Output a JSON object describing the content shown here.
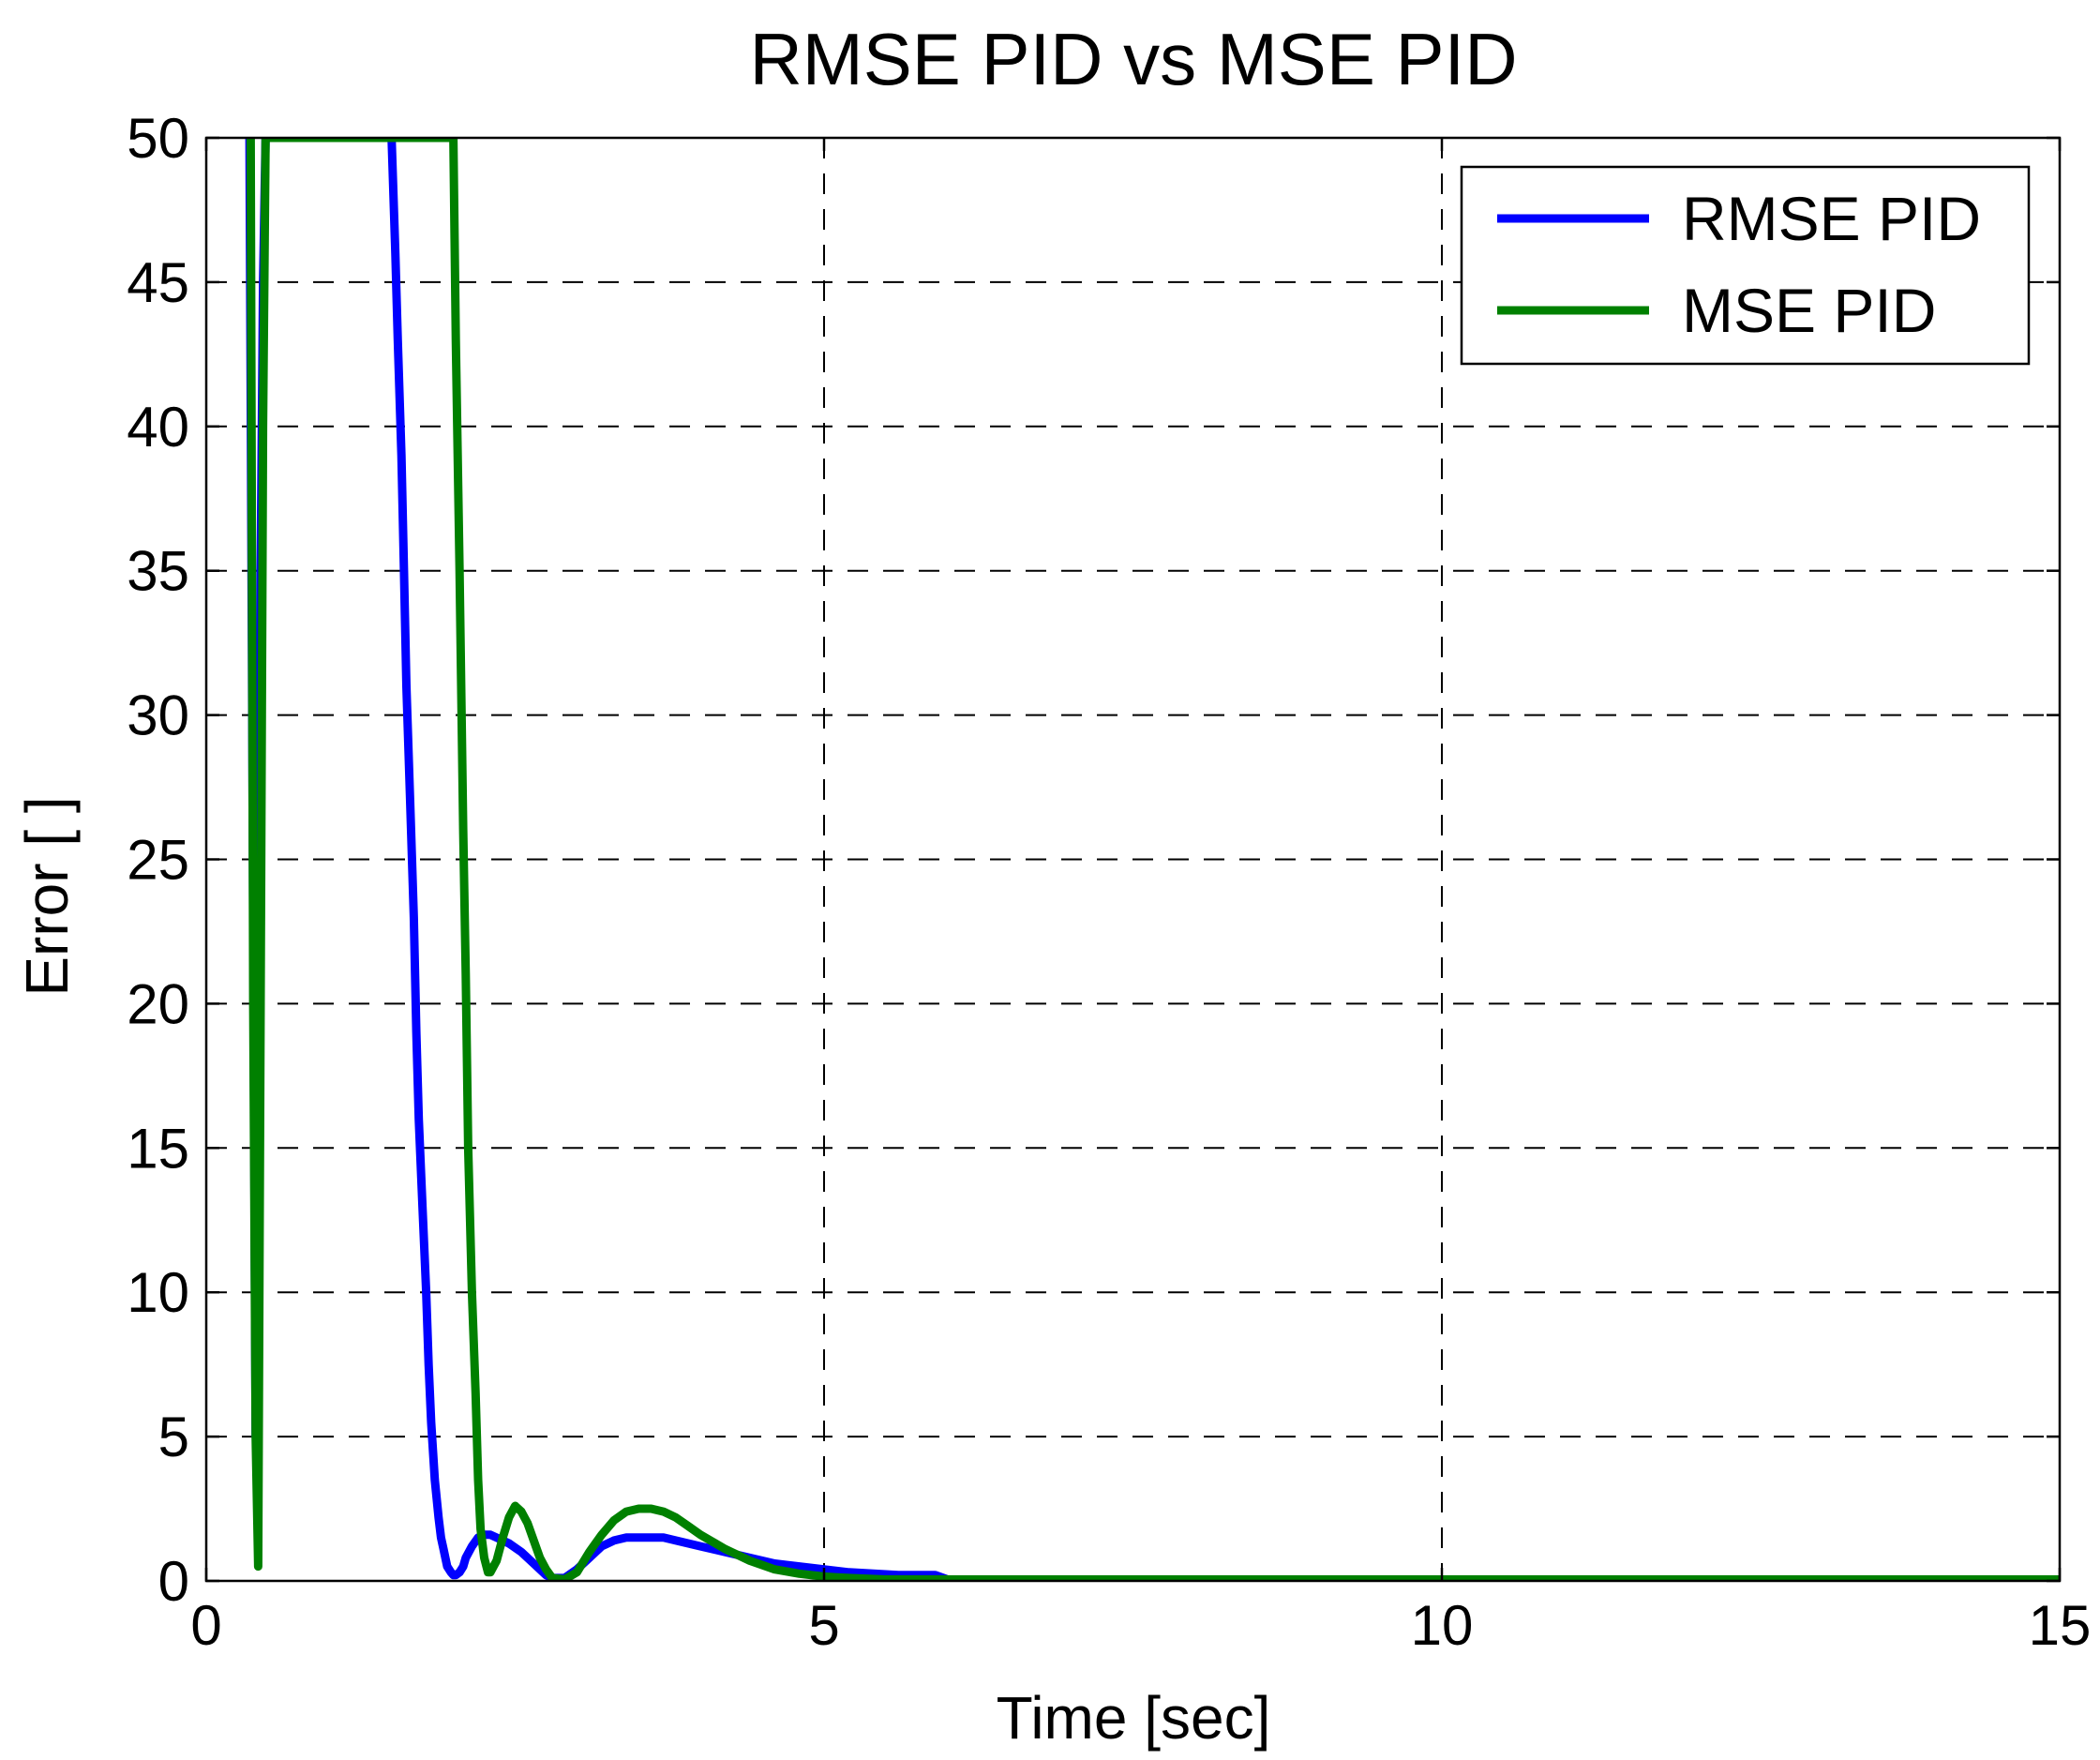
{
  "chart_data": {
    "type": "line",
    "title": "RMSE PID vs MSE PID",
    "xlabel": "Time [sec]",
    "ylabel": "Error [ ]",
    "xlim": [
      0,
      15
    ],
    "ylim": [
      0,
      50
    ],
    "xticks": [
      0,
      5,
      10,
      15
    ],
    "yticks": [
      0,
      5,
      10,
      15,
      20,
      25,
      30,
      35,
      40,
      45,
      50
    ],
    "grid": true,
    "legend_position": "top-right",
    "series": [
      {
        "name": "RMSE PID",
        "color": "#0000ff",
        "x": [
          0.35,
          0.4,
          0.42,
          0.44,
          0.46,
          0.48,
          0.5,
          1.2,
          1.5,
          1.53,
          1.55,
          1.58,
          1.6,
          1.62,
          1.65,
          1.68,
          1.7,
          1.72,
          1.75,
          1.78,
          1.8,
          1.82,
          1.85,
          1.88,
          1.9,
          1.92,
          1.95,
          1.98,
          2.0,
          2.02,
          2.05,
          2.08,
          2.1,
          2.15,
          2.2,
          2.25,
          2.3,
          2.35,
          2.45,
          2.55,
          2.65,
          2.75,
          2.8,
          2.9,
          3.0,
          3.1,
          3.2,
          3.3,
          3.4,
          3.5,
          3.6,
          3.7,
          3.8,
          3.9,
          4.0,
          4.2,
          4.4,
          4.6,
          4.8,
          5.0,
          5.2,
          5.4,
          5.6,
          5.8,
          5.9,
          6.0,
          7.0,
          8.0,
          9.0,
          10.0,
          11.0,
          12.0,
          13.0,
          14.0,
          15.0
        ],
        "y": [
          50,
          5,
          20,
          35,
          45,
          50,
          50,
          50,
          50,
          46,
          43,
          39,
          35,
          31,
          27,
          23,
          19,
          16,
          13,
          10,
          7.5,
          5.5,
          3.5,
          2.2,
          1.5,
          1.1,
          0.5,
          0.3,
          0.2,
          0.2,
          0.3,
          0.5,
          0.8,
          1.2,
          1.5,
          1.6,
          1.6,
          1.5,
          1.3,
          1.0,
          0.6,
          0.2,
          0.1,
          0.1,
          0.4,
          0.8,
          1.2,
          1.4,
          1.5,
          1.5,
          1.5,
          1.5,
          1.4,
          1.3,
          1.2,
          1.0,
          0.8,
          0.6,
          0.5,
          0.4,
          0.3,
          0.25,
          0.2,
          0.2,
          0.2,
          0.05,
          0.05,
          0.05,
          0.05,
          0.05,
          0.05,
          0.05,
          0.05,
          0.05,
          0.05
        ]
      },
      {
        "name": "MSE PID",
        "color": "#008000",
        "x": [
          0.36,
          0.38,
          0.4,
          0.42,
          0.44,
          0.46,
          0.48,
          1.0,
          2.0,
          2.02,
          2.05,
          2.08,
          2.1,
          2.12,
          2.15,
          2.18,
          2.2,
          2.22,
          2.25,
          2.28,
          2.3,
          2.35,
          2.4,
          2.45,
          2.5,
          2.55,
          2.6,
          2.65,
          2.7,
          2.75,
          2.8,
          2.9,
          3.0,
          3.1,
          3.2,
          3.3,
          3.4,
          3.5,
          3.6,
          3.7,
          3.8,
          3.9,
          4.0,
          4.2,
          4.4,
          4.6,
          4.8,
          5.0,
          5.2,
          5.5,
          6.0,
          7.0,
          8.0,
          9.0,
          10.0,
          11.0,
          12.0,
          13.0,
          14.0,
          15.0
        ],
        "y": [
          50,
          20,
          5,
          0.5,
          20,
          40,
          50,
          50,
          50,
          43,
          35,
          26,
          21,
          15,
          10,
          6.5,
          3.5,
          1.8,
          0.8,
          0.3,
          0.3,
          0.7,
          1.5,
          2.2,
          2.6,
          2.4,
          2.0,
          1.4,
          0.8,
          0.4,
          0.1,
          0.05,
          0.3,
          1.0,
          1.6,
          2.1,
          2.4,
          2.5,
          2.5,
          2.4,
          2.2,
          1.9,
          1.6,
          1.1,
          0.7,
          0.4,
          0.25,
          0.15,
          0.1,
          0.05,
          0.05,
          0.05,
          0.05,
          0.05,
          0.05,
          0.05,
          0.05,
          0.05,
          0.05,
          0.05
        ]
      }
    ]
  }
}
